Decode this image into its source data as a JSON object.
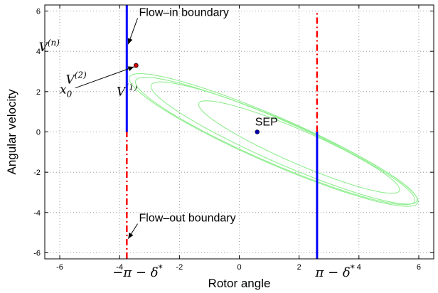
{
  "chart_data": {
    "type": "line",
    "xlabel": "Rotor angle",
    "ylabel": "Angular velocity",
    "xlim": [
      -6.5,
      6.5
    ],
    "ylim": [
      -6.3,
      6.3
    ],
    "xticks": [
      -6,
      -4,
      -2,
      0,
      2,
      4,
      6
    ],
    "yticks": [
      -6,
      -4,
      -2,
      0,
      2,
      4,
      6
    ],
    "grid": true,
    "colors": {
      "level_sets": "#90ee90",
      "flow_in": "#0000ff",
      "flow_out": "#ff0000",
      "point": "#0000aa",
      "x0_fill": "#cc0000"
    },
    "level_sets": [
      {
        "name": "V^(1)",
        "label_base": "V",
        "label_sup": "(1)",
        "label_at": [
          -4.1,
          1.8
        ],
        "center": [
          2.0,
          -0.75
        ],
        "a": 4.0,
        "b": 0.75,
        "angle_deg": -33.5
      },
      {
        "name": "V^(2)",
        "label_base": "V",
        "label_sup": "(2)",
        "label_at": [
          -5.8,
          2.4
        ],
        "center": [
          1.5,
          -0.55
        ],
        "a": 5.3,
        "b": 0.95,
        "angle_deg": -33.5
      },
      {
        "name": "V^(n)",
        "label_base": "V",
        "label_sup": "(n)",
        "label_at": [
          -6.7,
          4.0
        ],
        "center": [
          1.15,
          -0.4
        ],
        "a": 5.75,
        "b": 1.05,
        "angle_deg": -33.5
      },
      {
        "name": "V^(n) inner",
        "center": [
          1.2,
          -0.45
        ],
        "a": 5.55,
        "b": 1.0,
        "angle_deg": -33.3
      }
    ],
    "flow_in_boundary": [
      {
        "x": -3.76,
        "y_from": 0,
        "y_to": 6.3
      },
      {
        "x": 2.6,
        "y_from": -6.3,
        "y_to": 0
      }
    ],
    "flow_out_boundary": [
      {
        "x": -3.76,
        "y_from": -6.3,
        "y_to": 0
      },
      {
        "x": 2.6,
        "y_from": 0,
        "y_to": 6.0
      }
    ],
    "points": [
      {
        "name": "SEP",
        "label": "SEP",
        "x": 0.6,
        "y": 0.0
      },
      {
        "name": "x0",
        "x": -3.45,
        "y": 3.3
      }
    ],
    "annotations": [
      {
        "text": "Flow–in boundary",
        "text_at": [
          -3.35,
          5.75
        ],
        "arrow_to": [
          -3.76,
          4.35
        ]
      },
      {
        "text": "Flow–out boundary",
        "text_at": [
          -3.35,
          -4.45
        ],
        "arrow_to": [
          -3.76,
          -5.3
        ]
      }
    ],
    "x0_label": {
      "base": "x",
      "sub": "0",
      "at": [
        -6.0,
        1.9
      ]
    },
    "special_ticks": [
      {
        "x": -3.4,
        "text": "−π − δ*",
        "base": "−π − δ",
        "sup": "*"
      },
      {
        "x": 3.2,
        "text": "π − δ*",
        "base": "π − δ",
        "sup": "*"
      }
    ]
  }
}
